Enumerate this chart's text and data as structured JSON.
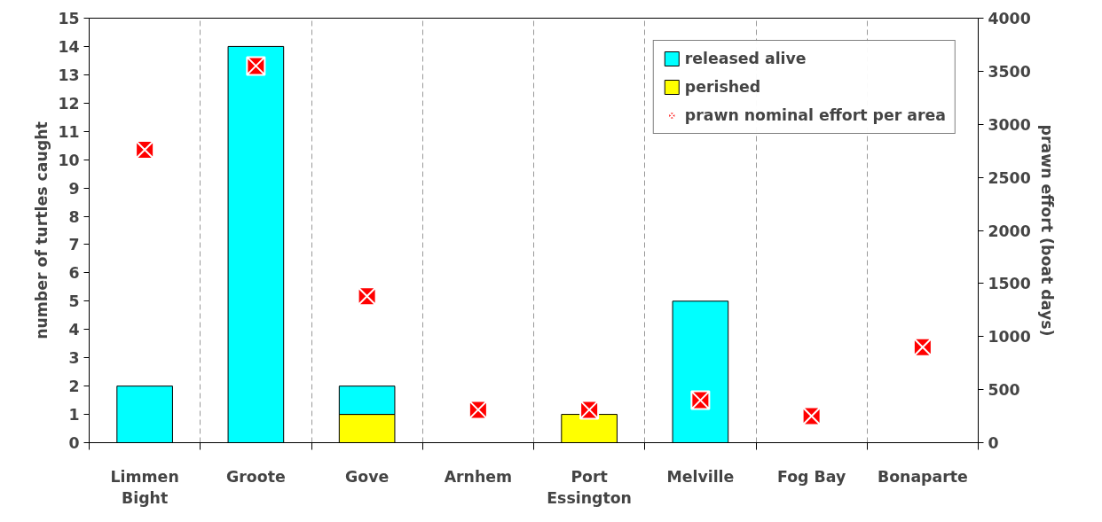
{
  "chart_data": {
    "type": "bar",
    "stacked": true,
    "categories": [
      "Limmen\nBight",
      "Groote",
      "Gove",
      "Arnhem",
      "Port\nEssington",
      "Melville",
      "Fog Bay",
      "Bonaparte"
    ],
    "ylabel": "number of turtles caught",
    "y2label": "prawn effort (boat days)",
    "ylim": [
      0,
      15
    ],
    "yticks": [
      0,
      1,
      2,
      3,
      4,
      5,
      6,
      7,
      8,
      9,
      10,
      11,
      12,
      13,
      14,
      15
    ],
    "y2lim": [
      0,
      4000
    ],
    "y2ticks": [
      0,
      500,
      1000,
      1500,
      2000,
      2500,
      3000,
      3500,
      4000
    ],
    "grid": "x",
    "legend": "top right",
    "series": [
      {
        "name": "perished",
        "color": "#ffff00",
        "values": [
          null,
          null,
          1,
          null,
          1,
          null,
          null,
          null
        ]
      },
      {
        "name": "released alive",
        "color": "#00ffff",
        "values": [
          2,
          14,
          1,
          null,
          null,
          5,
          null,
          null
        ]
      },
      {
        "name": "prawn nominal effort per area",
        "type": "scatter",
        "axis": "y2",
        "marker": "cross",
        "color": "#ff0000",
        "values": [
          2760,
          3550,
          1380,
          310,
          310,
          400,
          250,
          900
        ]
      }
    ]
  }
}
